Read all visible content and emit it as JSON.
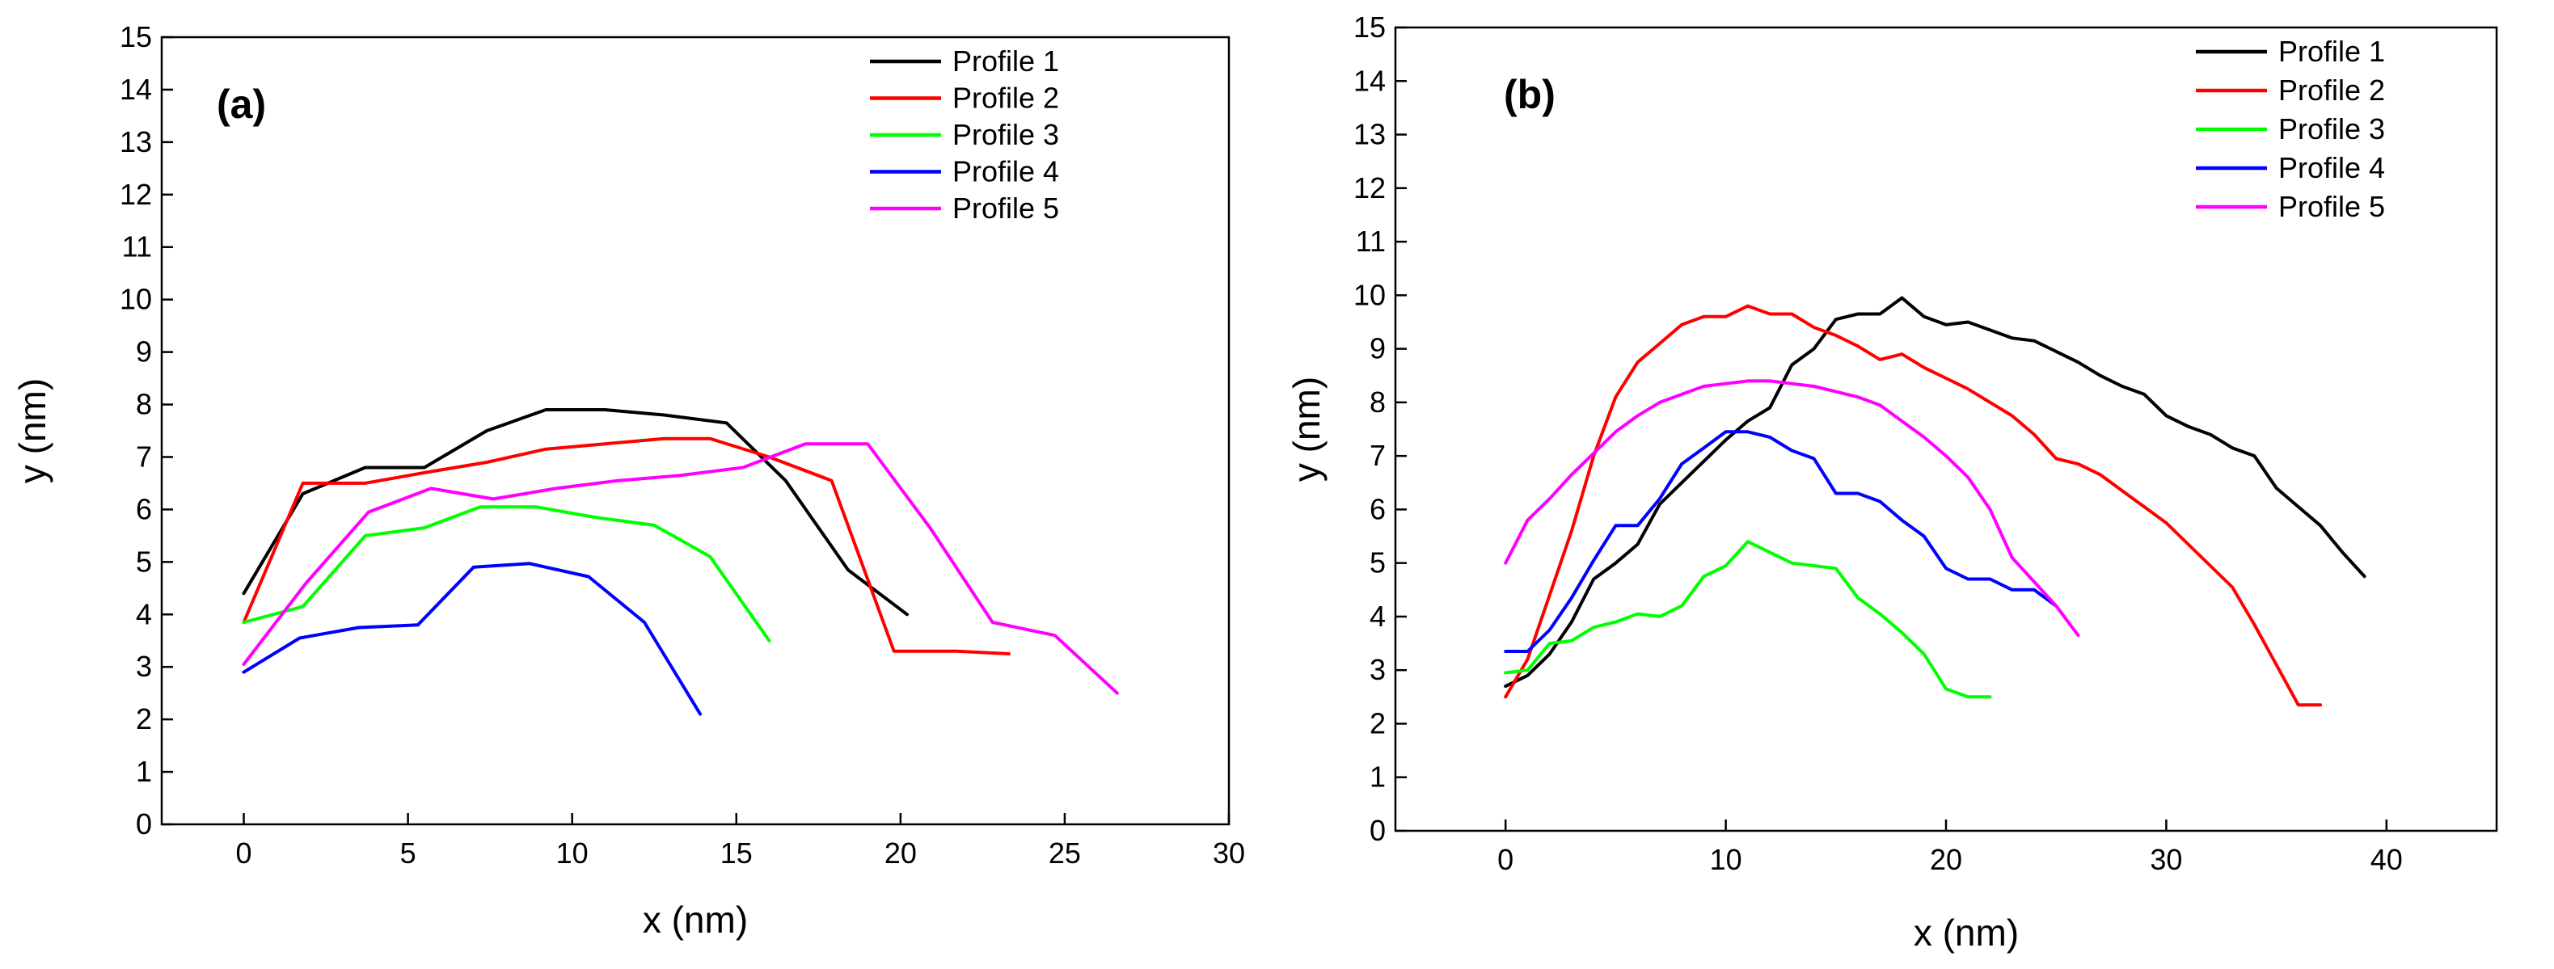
{
  "chart_data": [
    {
      "type": "line",
      "panel_label": "(a)",
      "xlabel": "x (nm)",
      "ylabel": "y (nm)",
      "xlim": [
        -2.5,
        30
      ],
      "ylim": [
        0,
        15
      ],
      "xticks": [
        0,
        5,
        10,
        15,
        20,
        25,
        30
      ],
      "xtick_labels": [
        "0",
        "5",
        "10",
        "15",
        "20",
        "25",
        "30"
      ],
      "yticks": [
        0,
        1,
        2,
        3,
        4,
        5,
        6,
        7,
        8,
        9,
        10,
        11,
        12,
        13,
        14,
        15
      ],
      "ytick_labels": [
        "0",
        "1",
        "2",
        "3",
        "4",
        "5",
        "6",
        "7",
        "8",
        "9",
        "10",
        "11",
        "12",
        "13",
        "14",
        "15"
      ],
      "legend_position": "top-right",
      "grid": false,
      "series": [
        {
          "name": "Profile 1",
          "color": "#000000",
          "x": [
            0,
            1.8,
            3.7,
            5.5,
            7.4,
            9.2,
            11.0,
            12.8,
            14.7,
            16.5,
            18.4,
            20.2
          ],
          "y": [
            4.4,
            6.3,
            6.8,
            6.8,
            7.5,
            7.9,
            7.9,
            7.8,
            7.65,
            6.55,
            4.85,
            4.0
          ]
        },
        {
          "name": "Profile 2",
          "color": "#ff0000",
          "x": [
            0,
            1.8,
            3.7,
            5.5,
            7.4,
            9.2,
            11.0,
            12.8,
            14.2,
            16.0,
            17.9,
            19.8,
            21.7,
            23.3
          ],
          "y": [
            3.85,
            6.5,
            6.5,
            6.7,
            6.9,
            7.15,
            7.25,
            7.35,
            7.35,
            7.0,
            6.55,
            3.3,
            3.3,
            3.25
          ]
        },
        {
          "name": "Profile 3",
          "color": "#00ff00",
          "x": [
            0,
            1.8,
            3.7,
            5.5,
            7.2,
            8.9,
            10.7,
            12.5,
            14.2,
            16.0
          ],
          "y": [
            3.85,
            4.15,
            5.5,
            5.65,
            6.05,
            6.05,
            5.85,
            5.7,
            5.1,
            3.5
          ]
        },
        {
          "name": "Profile 4",
          "color": "#0000ff",
          "x": [
            0,
            1.7,
            3.5,
            5.3,
            7.0,
            8.7,
            10.5,
            12.2,
            13.9
          ],
          "y": [
            2.9,
            3.55,
            3.75,
            3.8,
            4.9,
            4.97,
            4.72,
            3.85,
            2.1
          ]
        },
        {
          "name": "Profile 5",
          "color": "#ff00ff",
          "x": [
            0,
            1.9,
            3.8,
            5.7,
            7.6,
            9.5,
            11.4,
            13.3,
            15.2,
            17.1,
            19.0,
            20.9,
            22.8,
            24.7,
            26.6
          ],
          "y": [
            3.05,
            4.6,
            5.95,
            6.4,
            6.2,
            6.4,
            6.55,
            6.65,
            6.8,
            7.25,
            7.25,
            5.65,
            3.85,
            3.6,
            2.5
          ]
        }
      ]
    },
    {
      "type": "line",
      "panel_label": "(b)",
      "xlabel": "x (nm)",
      "ylabel": "y (nm)",
      "xlim": [
        -5,
        45
      ],
      "ylim": [
        0,
        15
      ],
      "xticks": [
        0,
        10,
        20,
        30,
        40
      ],
      "xtick_labels": [
        "0",
        "10",
        "20",
        "30",
        "40"
      ],
      "yticks": [
        0,
        1,
        2,
        3,
        4,
        5,
        6,
        7,
        8,
        9,
        10,
        11,
        12,
        13,
        14,
        15
      ],
      "ytick_labels": [
        "0",
        "1",
        "2",
        "3",
        "4",
        "5",
        "6",
        "7",
        "8",
        "9",
        "10",
        "11",
        "12",
        "13",
        "14",
        "15"
      ],
      "legend_position": "top-right",
      "grid": false,
      "series": [
        {
          "name": "Profile 1",
          "color": "#000000",
          "x": [
            0,
            1,
            2,
            3,
            4,
            5,
            6,
            7,
            8,
            9,
            10,
            11,
            12,
            13,
            14,
            15,
            16,
            17,
            18,
            19,
            20,
            21,
            22,
            23,
            24,
            25,
            26,
            27,
            28,
            29,
            30,
            31,
            32,
            33,
            34,
            35,
            36,
            37,
            38,
            39
          ],
          "y": [
            2.7,
            2.9,
            3.3,
            3.9,
            4.7,
            5.0,
            5.35,
            6.1,
            6.5,
            6.9,
            7.3,
            7.65,
            7.9,
            8.7,
            9.0,
            9.55,
            9.65,
            9.65,
            9.95,
            9.6,
            9.45,
            9.5,
            9.35,
            9.2,
            9.15,
            8.95,
            8.75,
            8.5,
            8.3,
            8.15,
            7.75,
            7.55,
            7.4,
            7.15,
            7.0,
            6.4,
            6.05,
            5.7,
            5.2,
            4.75
          ]
        },
        {
          "name": "Profile 2",
          "color": "#ff0000",
          "x": [
            0,
            1,
            2,
            3,
            4,
            5,
            6,
            7,
            8,
            9,
            10,
            11,
            12,
            13,
            14,
            15,
            16,
            17,
            18,
            19,
            20,
            21,
            22,
            23,
            24,
            25,
            26,
            27,
            28,
            29,
            30,
            31,
            32,
            33,
            34,
            35,
            36,
            37
          ],
          "y": [
            2.5,
            3.2,
            4.4,
            5.6,
            7.0,
            8.1,
            8.75,
            9.1,
            9.45,
            9.6,
            9.6,
            9.8,
            9.65,
            9.65,
            9.4,
            9.25,
            9.05,
            8.8,
            8.9,
            8.65,
            8.45,
            8.25,
            8.0,
            7.75,
            7.4,
            6.95,
            6.85,
            6.65,
            6.35,
            6.05,
            5.75,
            5.35,
            4.95,
            4.55,
            3.85,
            3.1,
            2.35,
            2.35
          ]
        },
        {
          "name": "Profile 3",
          "color": "#00ff00",
          "x": [
            0,
            1,
            2,
            3,
            4,
            5,
            6,
            7,
            8,
            9,
            10,
            11,
            12,
            13,
            14,
            15,
            16,
            17,
            18,
            19,
            20,
            21,
            22
          ],
          "y": [
            2.95,
            3.0,
            3.5,
            3.55,
            3.8,
            3.9,
            4.05,
            4.0,
            4.2,
            4.75,
            4.95,
            5.4,
            5.2,
            5.0,
            4.95,
            4.9,
            4.35,
            4.05,
            3.7,
            3.3,
            2.65,
            2.5,
            2.5
          ]
        },
        {
          "name": "Profile 4",
          "color": "#0000ff",
          "x": [
            0,
            1,
            2,
            3,
            4,
            5,
            6,
            7,
            8,
            9,
            10,
            11,
            12,
            13,
            14,
            15,
            16,
            17,
            18,
            19,
            20,
            21,
            22,
            23,
            24,
            25
          ],
          "y": [
            3.35,
            3.35,
            3.75,
            4.35,
            5.05,
            5.7,
            5.7,
            6.2,
            6.85,
            7.15,
            7.45,
            7.45,
            7.35,
            7.1,
            6.95,
            6.3,
            6.3,
            6.15,
            5.8,
            5.5,
            4.9,
            4.7,
            4.7,
            4.5,
            4.5,
            4.2
          ]
        },
        {
          "name": "Profile 5",
          "color": "#ff00ff",
          "x": [
            0,
            1,
            2,
            3,
            4,
            5,
            6,
            7,
            8,
            9,
            10,
            11,
            12,
            13,
            14,
            15,
            16,
            17,
            18,
            19,
            20,
            21,
            22,
            23,
            24,
            25,
            26
          ],
          "y": [
            5.0,
            5.8,
            6.2,
            6.65,
            7.05,
            7.45,
            7.75,
            8.0,
            8.15,
            8.3,
            8.35,
            8.4,
            8.4,
            8.35,
            8.3,
            8.2,
            8.1,
            7.95,
            7.65,
            7.35,
            7.0,
            6.6,
            6.0,
            5.1,
            4.65,
            4.2,
            3.65
          ]
        }
      ]
    }
  ]
}
